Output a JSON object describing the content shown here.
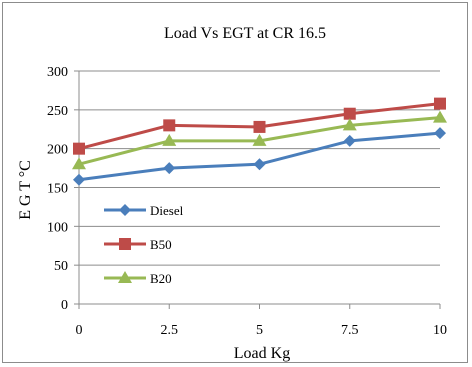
{
  "chart_data": {
    "type": "line",
    "title": "Load Vs EGT at CR 16.5",
    "xlabel": "Load Kg",
    "ylabel": "E G T °C",
    "categories": [
      "0",
      "2.5",
      "5",
      "7.5",
      "10"
    ],
    "x": [
      0,
      2.5,
      5,
      7.5,
      10
    ],
    "ylim": [
      0,
      300
    ],
    "yticks": [
      0,
      50,
      100,
      150,
      200,
      250,
      300
    ],
    "grid": true,
    "legend_position": "left-inside",
    "series": [
      {
        "name": "Diesel",
        "values": [
          160,
          175,
          180,
          210,
          220
        ],
        "color": "#4a7ebb",
        "marker": "diamond"
      },
      {
        "name": "B50",
        "values": [
          200,
          230,
          228,
          245,
          258
        ],
        "color": "#be4b48",
        "marker": "square"
      },
      {
        "name": "B20",
        "values": [
          180,
          210,
          210,
          230,
          240
        ],
        "color": "#98b954",
        "marker": "triangle"
      }
    ]
  }
}
